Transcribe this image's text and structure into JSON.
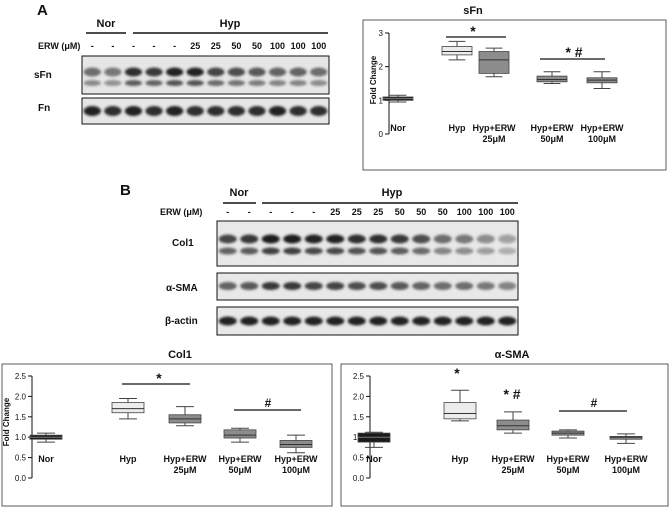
{
  "panel_a": {
    "letter": "A",
    "blot": {
      "header_nor": "Nor",
      "header_hyp": "Hyp",
      "erw_label": "ERW (μM)",
      "lane_labels": [
        "-",
        "-",
        "-",
        "-",
        "-",
        "25",
        "25",
        "50",
        "50",
        "100",
        "100",
        "100"
      ],
      "band_labels": [
        "sFn",
        "Fn"
      ],
      "band_intensity": [
        [
          0.55,
          0.5,
          0.85,
          0.8,
          0.9,
          0.9,
          0.75,
          0.7,
          0.65,
          0.6,
          0.6,
          0.55
        ],
        [
          0.9,
          0.85,
          0.9,
          0.85,
          0.9,
          0.85,
          0.85,
          0.85,
          0.85,
          0.9,
          0.85,
          0.85
        ]
      ]
    },
    "signif": [
      "*",
      "* #"
    ]
  },
  "panel_b": {
    "letter": "B",
    "blot": {
      "header_nor": "Nor",
      "header_hyp": "Hyp",
      "erw_label": "ERW (μM)",
      "lane_labels": [
        "-",
        "-",
        "-",
        "-",
        "-",
        "25",
        "25",
        "25",
        "50",
        "50",
        "50",
        "100",
        "100",
        "100"
      ],
      "band_labels": [
        "Col1",
        "α-SMA",
        "β-actin"
      ],
      "band_intensity": [
        [
          0.75,
          0.8,
          0.95,
          0.95,
          0.9,
          0.9,
          0.85,
          0.85,
          0.8,
          0.7,
          0.55,
          0.5,
          0.4,
          0.3
        ],
        [
          0.6,
          0.65,
          0.8,
          0.8,
          0.75,
          0.75,
          0.7,
          0.7,
          0.65,
          0.6,
          0.55,
          0.55,
          0.5,
          0.45
        ],
        [
          0.9,
          0.9,
          0.9,
          0.9,
          0.9,
          0.9,
          0.9,
          0.9,
          0.9,
          0.9,
          0.9,
          0.9,
          0.9,
          0.9
        ]
      ]
    },
    "signif_col1": [
      "*",
      "#"
    ],
    "signif_sma": [
      "*",
      "* #",
      "#"
    ]
  },
  "chart_data": [
    {
      "type": "boxplot",
      "title": "sFn",
      "ylabel": "Fold Change",
      "ylim": [
        0,
        3
      ],
      "yticks": [
        0,
        1,
        2,
        3
      ],
      "categories": [
        "Nor",
        "Hyp",
        "Hyp+ERW\n25μM",
        "Hyp+ERW\n50μM",
        "Hyp+ERW\n100μM"
      ],
      "boxes": [
        {
          "min": 0.95,
          "q1": 1.0,
          "median": 1.05,
          "q3": 1.1,
          "max": 1.15,
          "color": "#1a1a1a"
        },
        {
          "min": 2.2,
          "q1": 2.35,
          "median": 2.45,
          "q3": 2.6,
          "max": 2.75,
          "color": "#ececec"
        },
        {
          "min": 1.7,
          "q1": 1.8,
          "median": 2.2,
          "q3": 2.45,
          "max": 2.55,
          "color": "#8c8c8c"
        },
        {
          "min": 1.5,
          "q1": 1.55,
          "median": 1.62,
          "q3": 1.72,
          "max": 1.85,
          "color": "#8c8c8c"
        },
        {
          "min": 1.35,
          "q1": 1.52,
          "median": 1.6,
          "q3": 1.67,
          "max": 1.85,
          "color": "#8c8c8c"
        }
      ],
      "legend": "none",
      "grid": false
    },
    {
      "type": "boxplot",
      "title": "Col1",
      "ylabel": "Fold Change",
      "ylim": [
        0,
        2.5
      ],
      "yticks": [
        0,
        0.5,
        1.0,
        1.5,
        2.0,
        2.5
      ],
      "categories": [
        "Nor",
        "Hyp",
        "Hyp+ERW\n25μM",
        "Hyp+ERW\n50μM",
        "Hyp+ERW\n100μM"
      ],
      "boxes": [
        {
          "min": 0.88,
          "q1": 0.95,
          "median": 1.0,
          "q3": 1.05,
          "max": 1.1,
          "color": "#1a1a1a"
        },
        {
          "min": 1.45,
          "q1": 1.6,
          "median": 1.7,
          "q3": 1.85,
          "max": 1.95,
          "color": "#ececec"
        },
        {
          "min": 1.28,
          "q1": 1.35,
          "median": 1.45,
          "q3": 1.55,
          "max": 1.75,
          "color": "#8c8c8c"
        },
        {
          "min": 0.88,
          "q1": 0.98,
          "median": 1.05,
          "q3": 1.18,
          "max": 1.22,
          "color": "#8c8c8c"
        },
        {
          "min": 0.62,
          "q1": 0.75,
          "median": 0.82,
          "q3": 0.92,
          "max": 1.05,
          "color": "#8c8c8c"
        }
      ],
      "legend": "none",
      "grid": false
    },
    {
      "type": "boxplot",
      "title": "α-SMA",
      "ylabel": "",
      "ylim": [
        0,
        2.5
      ],
      "yticks": [
        0,
        0.5,
        1.0,
        1.5,
        2.0,
        2.5
      ],
      "categories": [
        "Nor",
        "Hyp",
        "Hyp+ERW\n25μM",
        "Hyp+ERW\n50μM",
        "Hyp+ERW\n100μM"
      ],
      "boxes": [
        {
          "min": 0.75,
          "q1": 0.88,
          "median": 1.0,
          "q3": 1.1,
          "max": 1.12,
          "color": "#1a1a1a"
        },
        {
          "min": 1.4,
          "q1": 1.45,
          "median": 1.58,
          "q3": 1.85,
          "max": 2.15,
          "color": "#ececec"
        },
        {
          "min": 1.1,
          "q1": 1.18,
          "median": 1.28,
          "q3": 1.42,
          "max": 1.62,
          "color": "#8c8c8c"
        },
        {
          "min": 0.98,
          "q1": 1.05,
          "median": 1.1,
          "q3": 1.15,
          "max": 1.18,
          "color": "#8c8c8c"
        },
        {
          "min": 0.85,
          "q1": 0.95,
          "median": 1.0,
          "q3": 1.02,
          "max": 1.08,
          "color": "#8c8c8c"
        }
      ],
      "legend": "none",
      "grid": false
    }
  ]
}
